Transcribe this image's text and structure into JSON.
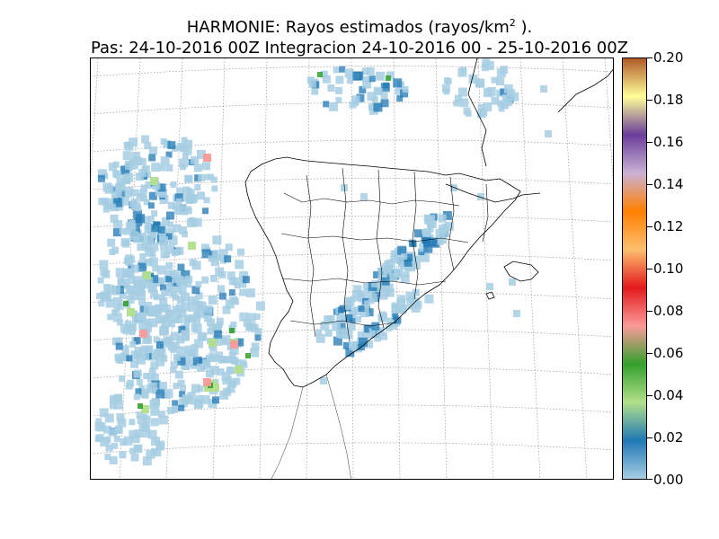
{
  "title": {
    "line1_prefix": "HARMONIE: Rayos estimados  (rayos/km",
    "line1_sup": "2",
    "line1_suffix": " ).",
    "line2": "Pas: 24-10-2016 00Z Integracion 24-10-2016 00 - 25-10-2016 00Z"
  },
  "colorbar": {
    "min": 0.0,
    "max": 0.2,
    "tick_labels": [
      "0.00",
      "0.02",
      "0.04",
      "0.06",
      "0.08",
      "0.10",
      "0.12",
      "0.14",
      "0.16",
      "0.18",
      "0.20"
    ],
    "colors": [
      "#a6cee3",
      "#1f78b4",
      "#b2df8a",
      "#33a02c",
      "#fb9a99",
      "#e31a1c",
      "#fdbf6f",
      "#ff7f00",
      "#cab2d6",
      "#6a3d9a",
      "#ffff99",
      "#b15928"
    ]
  },
  "map": {
    "region": "Iberian Peninsula",
    "features": [
      "coastlines",
      "provincial-borders",
      "graticule"
    ]
  }
}
